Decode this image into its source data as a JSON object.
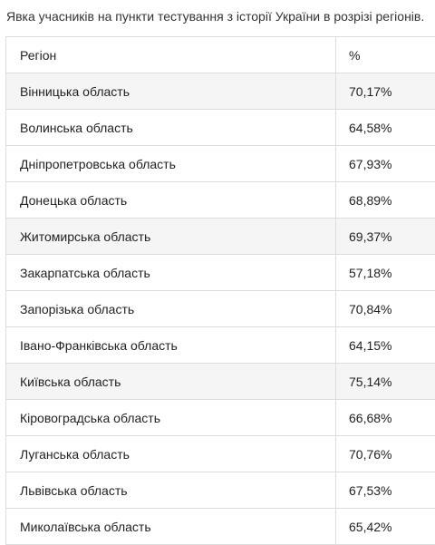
{
  "caption": "Явка учасників на пункти тестування з історії України в розрізі регіонів.",
  "table": {
    "headers": {
      "region": "Регіон",
      "percent": "%"
    },
    "rows": [
      {
        "region": "Вінницька область",
        "percent": "70,17%"
      },
      {
        "region": "Волинська область",
        "percent": "64,58%"
      },
      {
        "region": "Дніпропетровська область",
        "percent": "67,93%"
      },
      {
        "region": "Донецька область",
        "percent": "68,89%"
      },
      {
        "region": "Житомирська область",
        "percent": "69,37%"
      },
      {
        "region": "Закарпатська область",
        "percent": "57,18%"
      },
      {
        "region": "Запорізька область",
        "percent": "70,84%"
      },
      {
        "region": "Івано-Франківська область",
        "percent": "64,15%"
      },
      {
        "region": "Київська область",
        "percent": "75,14%"
      },
      {
        "region": "Кіровоградська область",
        "percent": "66,68%"
      },
      {
        "region": "Луганська область",
        "percent": "70,76%"
      },
      {
        "region": "Львівська область",
        "percent": "67,53%"
      },
      {
        "region": "Миколаївська область",
        "percent": "65,42%"
      }
    ]
  }
}
